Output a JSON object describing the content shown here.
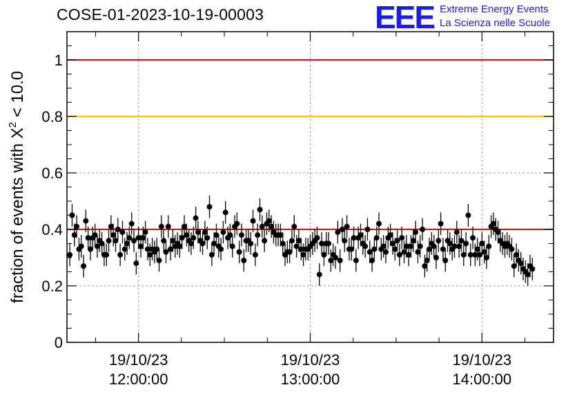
{
  "chart_data": {
    "type": "scatter",
    "title": "COSE-01-2023-10-19-00003",
    "ylabel": "fraction of events with χ² < 10.0",
    "ylabel_main": "fraction of events with ",
    "ylabel_chi": "X",
    "ylabel_sup": "2",
    "ylabel_tail": " < 10.0",
    "xlim": [
      "11:35",
      "14:25"
    ],
    "ylim": [
      0,
      1.1
    ],
    "y_ticks": [
      "0",
      "0.2",
      "0.4",
      "0.6",
      "0.8",
      "1"
    ],
    "y_tick_values": [
      0,
      0.2,
      0.4,
      0.6,
      0.8,
      1.0
    ],
    "x_ticks": [
      {
        "time": "12:00",
        "date": "19/10/23",
        "clock": "12:00:00"
      },
      {
        "time": "13:00",
        "date": "19/10/23",
        "clock": "13:00:00"
      },
      {
        "time": "14:00",
        "date": "19/10/23",
        "clock": "14:00:00"
      }
    ],
    "grid": true,
    "reference_lines": [
      {
        "y": 1.0,
        "color": "#e00000"
      },
      {
        "y": 0.8,
        "color": "#ffc000"
      },
      {
        "y": 0.4,
        "color": "#e00000"
      }
    ],
    "error_bar": 0.04,
    "series": [
      {
        "start": "11:36",
        "step_minutes": 0.8,
        "values": [
          0.31,
          0.45,
          0.38,
          0.41,
          0.33,
          0.34,
          0.27,
          0.43,
          0.37,
          0.33,
          0.37,
          0.38,
          0.34,
          0.36,
          0.35,
          0.31,
          0.31,
          0.36,
          0.41,
          0.38,
          0.36,
          0.4,
          0.31,
          0.39,
          0.33,
          0.35,
          0.37,
          0.42,
          0.36,
          0.28,
          0.37,
          0.34,
          0.37,
          0.39,
          0.33,
          0.31,
          0.33,
          0.32,
          0.33,
          0.29,
          0.41,
          0.36,
          0.32,
          0.41,
          0.33,
          0.36,
          0.34,
          0.35,
          0.34,
          0.37,
          0.41,
          0.38,
          0.36,
          0.35,
          0.37,
          0.44,
          0.39,
          0.36,
          0.35,
          0.39,
          0.37,
          0.48,
          0.31,
          0.35,
          0.38,
          0.34,
          0.33,
          0.39,
          0.46,
          0.37,
          0.38,
          0.34,
          0.41,
          0.42,
          0.32,
          0.38,
          0.29,
          0.36,
          0.36,
          0.35,
          0.43,
          0.31,
          0.38,
          0.47,
          0.41,
          0.36,
          0.42,
          0.43,
          0.41,
          0.39,
          0.38,
          0.38,
          0.38,
          0.35,
          0.31,
          0.32,
          0.32,
          0.36,
          0.41,
          0.34,
          0.36,
          0.33,
          0.31,
          0.33,
          0.33,
          0.34,
          0.35,
          0.36,
          0.37,
          0.24,
          0.35,
          0.31,
          0.35,
          0.35,
          0.29,
          0.31,
          0.3,
          0.39,
          0.29,
          0.4,
          0.36,
          0.41,
          0.33,
          0.33,
          0.37,
          0.29,
          0.37,
          0.38,
          0.35,
          0.34,
          0.4,
          0.32,
          0.29,
          0.33,
          0.37,
          0.42,
          0.33,
          0.34,
          0.32,
          0.37,
          0.38,
          0.35,
          0.33,
          0.36,
          0.31,
          0.37,
          0.32,
          0.34,
          0.31,
          0.34,
          0.36,
          0.39,
          0.32,
          0.34,
          0.4,
          0.27,
          0.29,
          0.33,
          0.35,
          0.34,
          0.3,
          0.36,
          0.42,
          0.33,
          0.29,
          0.36,
          0.35,
          0.33,
          0.34,
          0.39,
          0.34,
          0.36,
          0.31,
          0.35,
          0.45,
          0.31,
          0.37,
          0.31,
          0.33,
          0.31,
          0.35,
          0.32,
          0.3,
          0.34,
          0.41,
          0.42,
          0.4,
          0.39,
          0.36,
          0.35,
          0.34,
          0.35,
          0.34,
          0.33,
          0.27,
          0.31,
          0.29,
          0.28,
          0.26,
          0.25,
          0.24,
          0.27,
          0.26
        ]
      }
    ]
  },
  "logo": {
    "mark": "EEE",
    "line1": "Extreme Energy Events",
    "line2": "La Scienza nelle Scuole"
  },
  "colors": {
    "frame": "#000000",
    "grid": "#9a9a9a",
    "marker": "#000000",
    "logo": "#1a1aff"
  }
}
